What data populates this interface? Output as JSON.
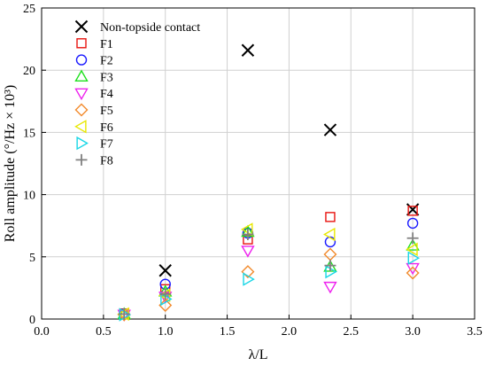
{
  "chart_data": {
    "type": "scatter",
    "title": "",
    "xlabel": "λ/L",
    "ylabel": "Roll amplitude (°/Hz × 10³)",
    "xlim": [
      0,
      3.5
    ],
    "ylim": [
      0,
      25
    ],
    "xticks": [
      "0.0",
      "0.5",
      "1.0",
      "1.5",
      "2.0",
      "2.5",
      "3.0",
      "3.5"
    ],
    "yticks": [
      "0",
      "5",
      "10",
      "15",
      "20",
      "25"
    ],
    "grid": true,
    "legend_position": "top-left",
    "series": [
      {
        "name": "Non-topside contact",
        "marker": "x",
        "color": "#000000",
        "points": [
          [
            1.0,
            3.9
          ],
          [
            1.667,
            21.6
          ],
          [
            2.333,
            15.2
          ],
          [
            3.0,
            8.8
          ]
        ]
      },
      {
        "name": "F1",
        "marker": "square",
        "color": "#e8130f",
        "points": [
          [
            0.667,
            0.45
          ],
          [
            1.0,
            2.4
          ],
          [
            1.667,
            6.4
          ],
          [
            2.333,
            8.2
          ],
          [
            3.0,
            8.7
          ]
        ]
      },
      {
        "name": "F2",
        "marker": "circle",
        "color": "#1a1aff",
        "points": [
          [
            0.667,
            0.4
          ],
          [
            1.0,
            2.8
          ],
          [
            1.667,
            6.9
          ],
          [
            2.333,
            6.2
          ],
          [
            3.0,
            7.7
          ]
        ]
      },
      {
        "name": "F3",
        "marker": "triangle-up",
        "color": "#1ee01e",
        "points": [
          [
            0.667,
            0.4
          ],
          [
            1.0,
            2.2
          ],
          [
            1.667,
            7.0
          ],
          [
            2.333,
            4.2
          ],
          [
            3.0,
            5.9
          ]
        ]
      },
      {
        "name": "F4",
        "marker": "triangle-down",
        "color": "#ee22ee",
        "points": [
          [
            0.667,
            0.35
          ],
          [
            1.0,
            1.8
          ],
          [
            1.667,
            5.5
          ],
          [
            2.333,
            2.6
          ],
          [
            3.0,
            4.1
          ]
        ]
      },
      {
        "name": "F5",
        "marker": "diamond",
        "color": "#f28a2c",
        "points": [
          [
            0.667,
            0.35
          ],
          [
            1.0,
            1.1
          ],
          [
            1.667,
            3.8
          ],
          [
            2.333,
            5.2
          ],
          [
            3.0,
            3.7
          ]
        ]
      },
      {
        "name": "F6",
        "marker": "triangle-left",
        "color": "#e8e800",
        "points": [
          [
            0.667,
            0.4
          ],
          [
            1.0,
            1.9
          ],
          [
            1.667,
            7.2
          ],
          [
            2.333,
            6.8
          ],
          [
            3.0,
            5.6
          ]
        ]
      },
      {
        "name": "F7",
        "marker": "triangle-right",
        "color": "#19d6e6",
        "points": [
          [
            0.667,
            0.35
          ],
          [
            1.0,
            1.6
          ],
          [
            1.667,
            3.2
          ],
          [
            2.333,
            3.8
          ],
          [
            3.0,
            4.9
          ]
        ]
      },
      {
        "name": "F8",
        "marker": "plus",
        "color": "#808080",
        "points": [
          [
            0.667,
            0.4
          ],
          [
            1.0,
            2.0
          ],
          [
            1.667,
            6.8
          ],
          [
            2.333,
            4.3
          ],
          [
            3.0,
            6.5
          ]
        ]
      }
    ]
  }
}
